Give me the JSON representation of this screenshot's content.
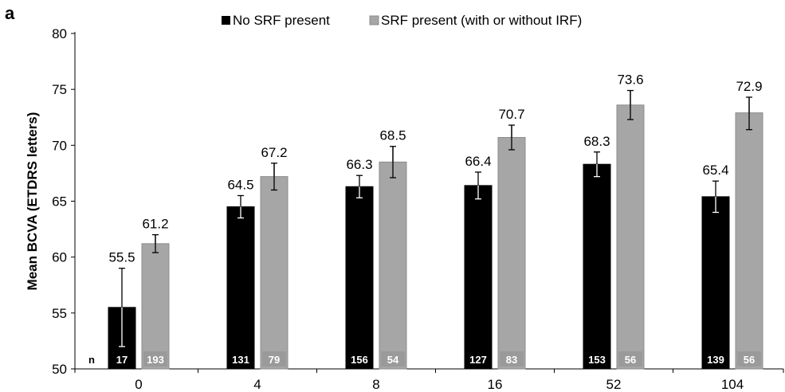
{
  "panel_label": "a",
  "chart_data": {
    "type": "bar",
    "ylabel": "Mean BCVA (ETDRS letters)",
    "xlabel": "",
    "ylim": [
      50,
      80
    ],
    "yticks": [
      50,
      55,
      60,
      65,
      70,
      75,
      80
    ],
    "categories": [
      "0",
      "4",
      "8",
      "16",
      "52",
      "104"
    ],
    "legend_position": "top-center",
    "n_label": "n",
    "series": [
      {
        "name": "No SRF present",
        "color": "#000000",
        "values": [
          55.5,
          64.5,
          66.3,
          66.4,
          68.3,
          65.4
        ],
        "value_labels": [
          "55.5",
          "64.5",
          "66.3",
          "66.4",
          "68.3",
          "65.4"
        ],
        "error_low": [
          52.0,
          63.5,
          65.3,
          65.2,
          67.2,
          64.0
        ],
        "error_high": [
          59.0,
          65.5,
          67.3,
          67.6,
          69.4,
          66.8
        ],
        "n": [
          "17",
          "131",
          "156",
          "127",
          "153",
          "139"
        ]
      },
      {
        "name": "SRF present (with or without IRF)",
        "color": "#a6a6a6",
        "values": [
          61.2,
          67.2,
          68.5,
          70.7,
          73.6,
          72.9
        ],
        "value_labels": [
          "61.2",
          "67.2",
          "68.5",
          "70.7",
          "73.6",
          "72.9"
        ],
        "error_low": [
          60.4,
          66.0,
          67.1,
          69.6,
          72.3,
          71.4
        ],
        "error_high": [
          62.0,
          68.4,
          69.9,
          71.8,
          74.9,
          74.3
        ],
        "n": [
          "193",
          "79",
          "54",
          "83",
          "56",
          "56"
        ]
      }
    ]
  }
}
